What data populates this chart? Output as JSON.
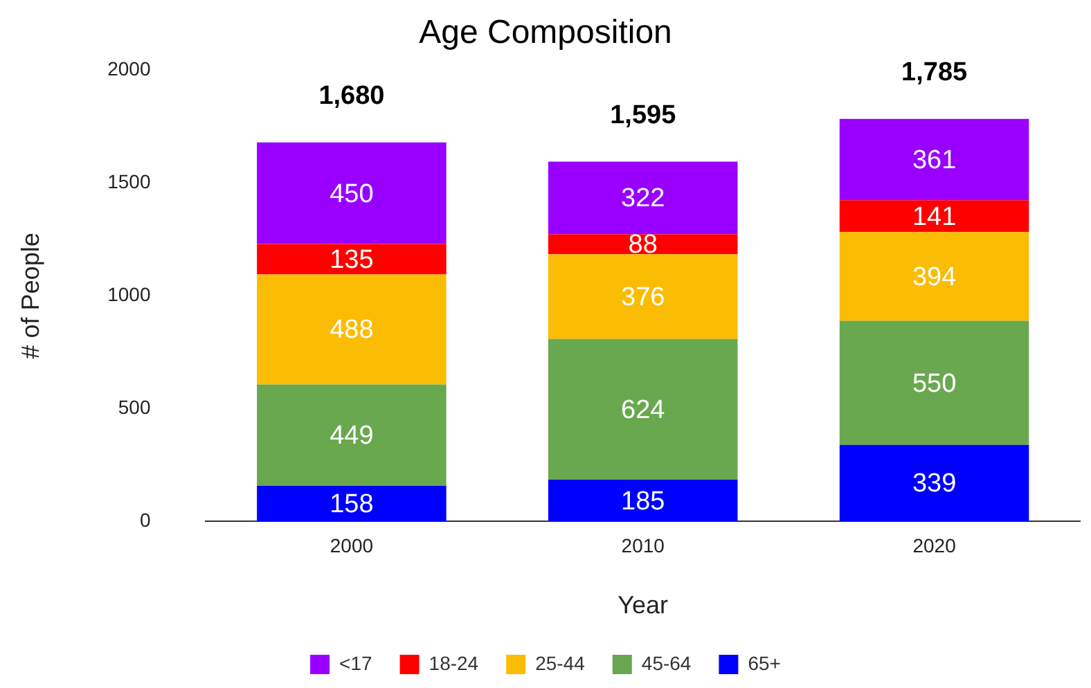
{
  "chart_data": {
    "type": "bar",
    "title": "Age Composition",
    "xlabel": "Year",
    "ylabel": "# of People",
    "categories": [
      "2000",
      "2010",
      "2020"
    ],
    "stacked": true,
    "ylim": [
      0,
      2000
    ],
    "yticks": [
      0,
      500,
      1000,
      1500,
      2000
    ],
    "legend": "bottom",
    "data_labels": true,
    "totals": [
      "1,680",
      "1,595",
      "1,785"
    ],
    "series": [
      {
        "name": "65+",
        "color": "#0000ff",
        "values": [
          158,
          185,
          339
        ]
      },
      {
        "name": "45-64",
        "color": "#6aa84f",
        "values": [
          449,
          624,
          550
        ]
      },
      {
        "name": "25-44",
        "color": "#fbbc04",
        "values": [
          488,
          376,
          394
        ]
      },
      {
        "name": "18-24",
        "color": "#ff0000",
        "values": [
          135,
          88,
          141
        ]
      },
      {
        "name": "<17",
        "color": "#9900ff",
        "values": [
          450,
          322,
          361
        ]
      }
    ]
  }
}
